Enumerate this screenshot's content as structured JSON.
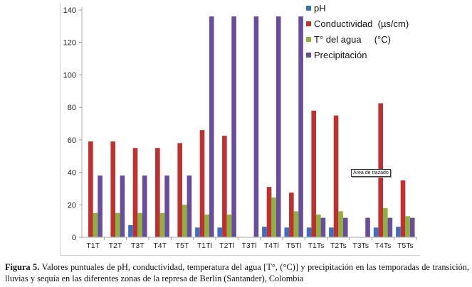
{
  "chart_data": {
    "type": "bar",
    "title": "",
    "xlabel": "",
    "ylabel": "",
    "ylim": [
      0,
      140
    ],
    "yticks": [
      0,
      20,
      40,
      60,
      80,
      100,
      120,
      140
    ],
    "grid": false,
    "legend_position": "top-right",
    "categories": [
      "T1T",
      "T2T",
      "T3T",
      "T4T",
      "T5T",
      "T1Tl",
      "T2Tl",
      "T3Tl",
      "T4Tl",
      "T5Tl",
      "T1Ts",
      "T2Ts",
      "T3Ts",
      "T4Ts",
      "T5Ts"
    ],
    "series": [
      {
        "name": "pH",
        "color": "#3a6fc4",
        "values": [
          0,
          0,
          7.5,
          0,
          0,
          6,
          6,
          0,
          6.5,
          6,
          6,
          6,
          0,
          6,
          6.5
        ]
      },
      {
        "name": "Conductividad  (µs/cm)",
        "color": "#c0302e",
        "values": [
          59,
          59,
          55,
          55,
          58,
          66,
          62.5,
          0,
          31,
          27.5,
          78,
          75,
          0,
          82.5,
          35
        ]
      },
      {
        "name": "T° del agua     (°C)",
        "color": "#8db23f",
        "values": [
          15,
          15,
          15,
          15,
          20,
          14,
          14,
          0,
          24.5,
          16,
          14,
          16,
          0,
          18,
          13
        ]
      },
      {
        "name": "Precipitación",
        "color": "#6a4c9c",
        "values": [
          38,
          38,
          38,
          38,
          38,
          136,
          136,
          136,
          136,
          136,
          12,
          12,
          12,
          12,
          12
        ]
      }
    ],
    "annotations": [
      "Área de trazado"
    ]
  },
  "caption": {
    "label": "Figura 5.",
    "text": " Valores puntuales de pH, conductividad, temperatura del agua [T°, (°C)] y precipitación en las temporadas de transición, lluvias y sequía en las diferentes zonas de la represa de Berlín (Santander), Colombia"
  }
}
